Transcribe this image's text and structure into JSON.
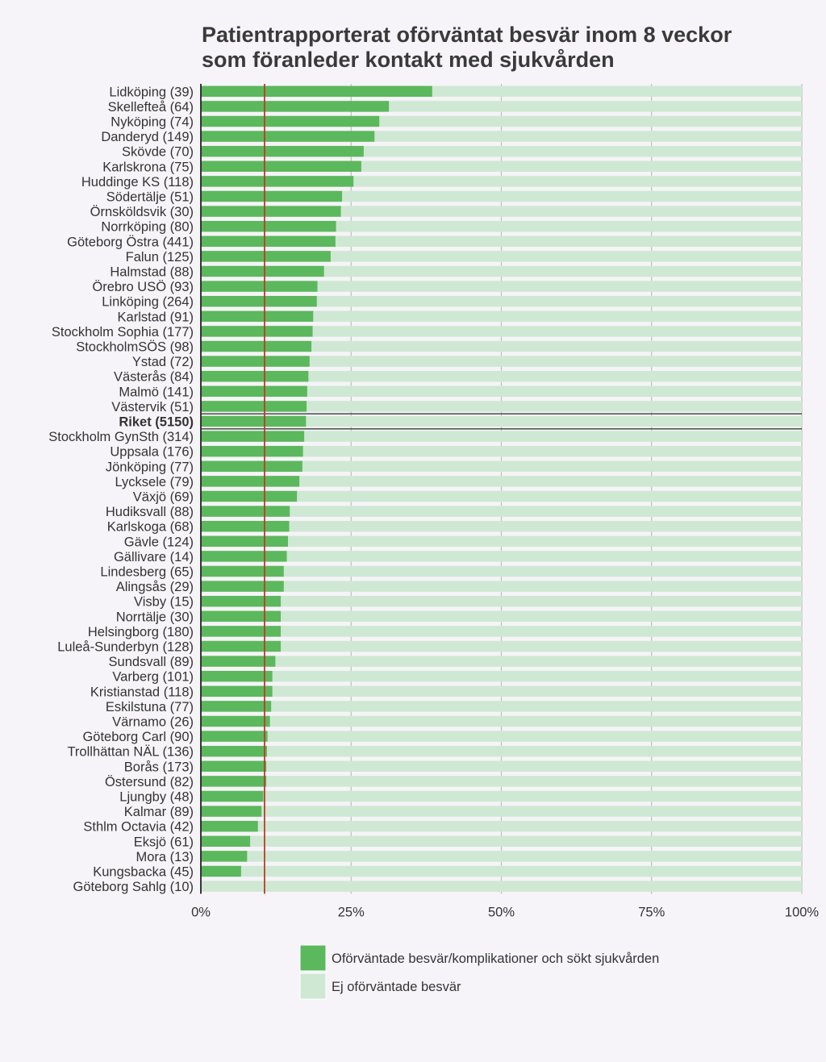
{
  "chart_data": {
    "type": "bar",
    "orientation": "horizontal",
    "stacked": true,
    "title_lines": [
      "Patientrapporterat oförväntat besvär inom 8 veckor",
      "som föranleder kontakt med sjukvården"
    ],
    "xlim": [
      0,
      100
    ],
    "x_ticks": [
      0,
      25,
      50,
      75,
      100
    ],
    "x_tick_labels": [
      "0%",
      "25%",
      "50%",
      "75%",
      "100%"
    ],
    "grid": true,
    "legend_position": "bottom",
    "reference_line": {
      "value": 10.6,
      "color": "#c0392b"
    },
    "highlight_category": "Riket (5150)",
    "series": [
      {
        "name": "Oförväntade besvär/komplikationer och sökt sjukvården",
        "color": "#5cb85c"
      },
      {
        "name": "Ej oförväntade besvär",
        "color": "#cfe8d3"
      }
    ],
    "categories": [
      "Lidköping (39)",
      "Skellefteå (64)",
      "Nyköping (74)",
      "Danderyd (149)",
      "Skövde (70)",
      "Karlskrona (75)",
      "Huddinge KS (118)",
      "Södertälje (51)",
      "Örnsköldsvik (30)",
      "Norrköping (80)",
      "Göteborg Östra (441)",
      "Falun (125)",
      "Halmstad (88)",
      "Örebro USÖ (93)",
      "Linköping (264)",
      "Karlstad (91)",
      "Stockholm Sophia (177)",
      "StockholmSÖS (98)",
      "Ystad (72)",
      "Västerås (84)",
      "Malmö (141)",
      "Västervik (51)",
      "Riket (5150)",
      "Stockholm GynSth (314)",
      "Uppsala (176)",
      "Jönköping (77)",
      "Lycksele (79)",
      "Växjö (69)",
      "Hudiksvall (88)",
      "Karlskoga (68)",
      "Gävle (124)",
      "Gällivare (14)",
      "Lindesberg (65)",
      "Alingsås (29)",
      "Visby (15)",
      "Norrtälje (30)",
      "Helsingborg (180)",
      "Luleå-Sunderbyn (128)",
      "Sundsvall (89)",
      "Varberg (101)",
      "Kristianstad (118)",
      "Eskilstuna (77)",
      "Värnamo (26)",
      "Göteborg Carl (90)",
      "Trollhättan NÄL (136)",
      "Borås (173)",
      "Östersund (82)",
      "Ljungby (48)",
      "Kalmar (89)",
      "Sthlm Octavia (42)",
      "Eksjö (61)",
      "Mora (13)",
      "Kungsbacka (45)",
      "Göteborg Sahlg (10)"
    ],
    "values": [
      38.5,
      31.3,
      29.7,
      28.9,
      27.1,
      26.7,
      25.4,
      23.5,
      23.3,
      22.5,
      22.4,
      21.6,
      20.5,
      19.4,
      19.3,
      18.7,
      18.6,
      18.4,
      18.1,
      17.9,
      17.7,
      17.6,
      17.5,
      17.2,
      17.0,
      16.9,
      16.4,
      16.0,
      14.8,
      14.7,
      14.5,
      14.3,
      13.8,
      13.8,
      13.3,
      13.3,
      13.3,
      13.3,
      12.4,
      11.9,
      11.9,
      11.7,
      11.5,
      11.1,
      11.0,
      10.9,
      10.9,
      10.4,
      10.1,
      9.5,
      8.2,
      7.7,
      6.7,
      0.0
    ]
  }
}
